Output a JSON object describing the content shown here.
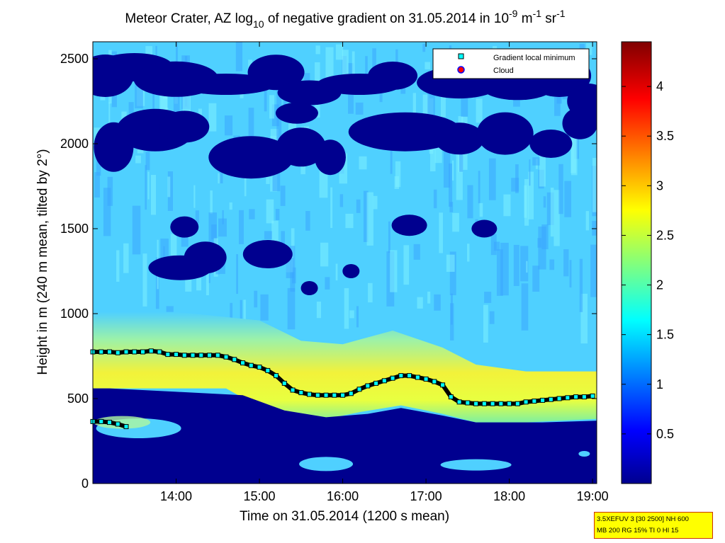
{
  "title_parts": {
    "a": "Meteor Crater, AZ log",
    "b": "10",
    "c": " of negative gradient on 31.05.2014 in 10",
    "d": "-9",
    "e": " m",
    "f": "-1",
    "g": " sr",
    "h": "-1"
  },
  "info_box": {
    "line1": "3.5XEFUV 3 [30 2500] NH 600",
    "line2": "MB 200 RG 15% TI 0 HI 15"
  },
  "colors": {
    "background_field": "#4fd0ff",
    "low_band": "#00008f",
    "gradient_marker_fill": "#00ffff",
    "gradient_line": "#000000",
    "cloud_marker_fill": "#ff0000",
    "cloud_marker_edge": "#0000ff"
  },
  "chart_data": {
    "type": "heatmap",
    "title": "Meteor Crater, AZ log10 of negative gradient on 31.05.2014 in 10^-9 m^-1 sr^-1",
    "xlabel": "Time on 31.05.2014 (1200 s mean)",
    "ylabel": "Height in m (240 m mean, tilted by 2°)",
    "x_unit": "hours",
    "xlim": [
      13.0,
      19.05
    ],
    "ylim": [
      0,
      2600
    ],
    "x_ticks": [
      {
        "value": 14,
        "label": "14:00"
      },
      {
        "value": 15,
        "label": "15:00"
      },
      {
        "value": 16,
        "label": "16:00"
      },
      {
        "value": 17,
        "label": "17:00"
      },
      {
        "value": 18,
        "label": "18:00"
      },
      {
        "value": 19,
        "label": "19:00"
      }
    ],
    "y_ticks": [
      {
        "value": 0,
        "label": "0"
      },
      {
        "value": 500,
        "label": "500"
      },
      {
        "value": 1000,
        "label": "1000"
      },
      {
        "value": 1500,
        "label": "1500"
      },
      {
        "value": 2000,
        "label": "2000"
      },
      {
        "value": 2500,
        "label": "2500"
      }
    ],
    "colorbar": {
      "colormap": "jet",
      "range": [
        0,
        4.45
      ],
      "ticks": [
        {
          "value": 0.5,
          "label": "0.5"
        },
        {
          "value": 1,
          "label": "1"
        },
        {
          "value": 1.5,
          "label": "1.5"
        },
        {
          "value": 2,
          "label": "2"
        },
        {
          "value": 2.5,
          "label": "2.5"
        },
        {
          "value": 3,
          "label": "3"
        },
        {
          "value": 3.5,
          "label": "3.5"
        },
        {
          "value": 4,
          "label": "4"
        }
      ]
    },
    "legend": {
      "position": "top-right",
      "entries": [
        {
          "label": "Gradient local minimum",
          "marker": "square"
        },
        {
          "label": "Cloud",
          "marker": "circle"
        }
      ]
    },
    "series": [
      {
        "name": "Gradient local minimum",
        "x": [
          13.0,
          13.1,
          13.2,
          13.3,
          13.4,
          13.5,
          13.6,
          13.7,
          13.8,
          13.9,
          14.0,
          14.1,
          14.2,
          14.3,
          14.4,
          14.5,
          14.6,
          14.7,
          14.8,
          14.9,
          15.0,
          15.1,
          15.2,
          15.3,
          15.4,
          15.5,
          15.6,
          15.7,
          15.8,
          15.9,
          16.0,
          16.1,
          16.2,
          16.3,
          16.4,
          16.5,
          16.6,
          16.7,
          16.8,
          16.9,
          17.0,
          17.1,
          17.2,
          17.3,
          17.4,
          17.5,
          17.6,
          17.7,
          17.8,
          17.9,
          18.0,
          18.1,
          18.2,
          18.3,
          18.4,
          18.5,
          18.6,
          18.7,
          18.8,
          18.9,
          19.0
        ],
        "y": [
          775,
          775,
          775,
          770,
          775,
          775,
          775,
          780,
          775,
          760,
          760,
          755,
          755,
          755,
          755,
          755,
          745,
          730,
          710,
          695,
          685,
          665,
          635,
          590,
          550,
          535,
          525,
          520,
          520,
          520,
          520,
          530,
          555,
          575,
          590,
          605,
          620,
          635,
          635,
          625,
          615,
          600,
          580,
          510,
          480,
          475,
          470,
          470,
          470,
          470,
          470,
          470,
          480,
          485,
          490,
          495,
          500,
          505,
          510,
          510,
          515
        ]
      },
      {
        "name": "Gradient local minimum (lower)",
        "x": [
          13.0,
          13.1,
          13.2,
          13.3,
          13.4
        ],
        "y": [
          365,
          365,
          360,
          350,
          335
        ]
      },
      {
        "name": "Cloud",
        "x": [],
        "y": []
      }
    ]
  }
}
